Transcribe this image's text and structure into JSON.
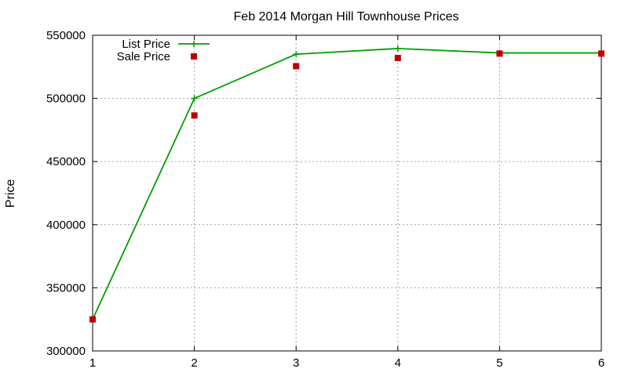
{
  "chart_data": {
    "type": "line",
    "title": "Feb 2014 Morgan Hill Townhouse Prices",
    "xlabel": "",
    "ylabel": "Price",
    "xlim": [
      1,
      6
    ],
    "ylim": [
      300000,
      550000
    ],
    "x_ticks": [
      "1",
      "2",
      "3",
      "4",
      "5",
      "6"
    ],
    "y_ticks": [
      "300000",
      "350000",
      "400000",
      "450000",
      "500000",
      "550000"
    ],
    "grid": true,
    "legend_position": "top-left",
    "series": [
      {
        "name": "List Price",
        "style": "line-with-plus-markers",
        "color": "#009e00",
        "x": [
          1,
          2,
          3,
          4,
          5,
          6
        ],
        "values": [
          325000,
          500000,
          535000,
          539500,
          536000,
          536000
        ]
      },
      {
        "name": "Sale Price",
        "style": "square-markers",
        "color": "#c00000",
        "x": [
          1,
          2,
          3,
          4,
          5,
          6
        ],
        "values": [
          325000,
          486500,
          525500,
          532000,
          535500,
          535500
        ]
      }
    ]
  }
}
